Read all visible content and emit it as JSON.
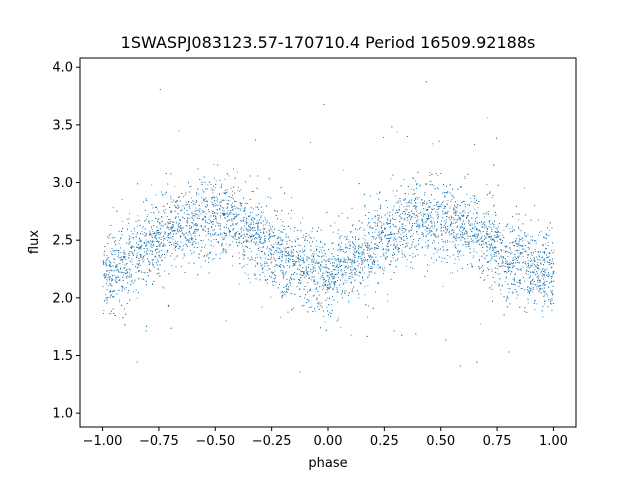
{
  "chart_data": {
    "type": "scatter",
    "title": "1SWASPJ083123.57-170710.4 Period 16509.92188s",
    "xlabel": "phase",
    "ylabel": "flux",
    "xlim": [
      -1.1,
      1.1
    ],
    "ylim": [
      0.88,
      4.08
    ],
    "x_ticks": [
      -1.0,
      -0.75,
      -0.5,
      -0.25,
      0.0,
      0.25,
      0.5,
      0.75,
      1.0
    ],
    "x_tick_labels": [
      "−1.00",
      "−0.75",
      "−0.50",
      "−0.25",
      "0.00",
      "0.25",
      "0.50",
      "0.75",
      "1.00"
    ],
    "y_ticks": [
      1.0,
      1.5,
      2.0,
      2.5,
      3.0,
      3.5,
      4.0
    ],
    "y_tick_labels": [
      "1.0",
      "1.5",
      "2.0",
      "2.5",
      "3.0",
      "3.5",
      "4.0"
    ],
    "grid": false,
    "point_color": "#1f77b4",
    "series": [
      {
        "x": [
          -1.0,
          -0.9,
          -0.8,
          -0.7,
          -0.6,
          -0.5,
          -0.4,
          -0.3,
          -0.2,
          -0.1,
          0.0,
          0.1,
          0.2,
          0.3,
          0.4,
          0.5,
          0.6,
          0.7,
          0.8,
          0.9,
          1.0
        ],
        "y": [
          2.2,
          2.28,
          2.45,
          2.6,
          2.68,
          2.7,
          2.65,
          2.5,
          2.35,
          2.25,
          2.2,
          2.3,
          2.45,
          2.6,
          2.68,
          2.7,
          2.63,
          2.5,
          2.35,
          2.25,
          2.2
        ]
      }
    ]
  }
}
